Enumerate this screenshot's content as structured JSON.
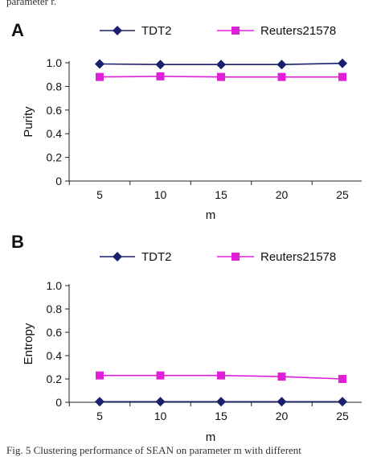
{
  "caption_top": "parameter r.",
  "caption_bottom": "Fig. 5 Clustering performance of SEAN on parameter m with different",
  "chart_data": [
    {
      "type": "line",
      "panel": "A",
      "categories": [
        "5",
        "10",
        "15",
        "20",
        "25"
      ],
      "x": [
        5,
        10,
        15,
        20,
        25
      ],
      "xlabel": "m",
      "ylabel": "Purity",
      "ylim": [
        0,
        1.0
      ],
      "yticks": [
        "0",
        "0.2",
        "0.4",
        "0.6",
        "0.8",
        "1.0"
      ],
      "legend_position": "top",
      "grid": false,
      "series": [
        {
          "name": "TDT2",
          "values": [
            0.99,
            0.985,
            0.985,
            0.985,
            0.995
          ],
          "color": "#1a1f6e",
          "marker": "diamond"
        },
        {
          "name": "Reuters21578",
          "values": [
            0.88,
            0.885,
            0.88,
            0.88,
            0.88
          ],
          "color": "#e020d8",
          "marker": "square"
        }
      ]
    },
    {
      "type": "line",
      "panel": "B",
      "categories": [
        "5",
        "10",
        "15",
        "20",
        "25"
      ],
      "x": [
        5,
        10,
        15,
        20,
        25
      ],
      "xlabel": "m",
      "ylabel": "Entropy",
      "ylim": [
        0,
        1.0
      ],
      "yticks": [
        "0",
        "0.2",
        "0.4",
        "0.6",
        "0.8",
        "1.0"
      ],
      "legend_position": "top",
      "grid": false,
      "series": [
        {
          "name": "TDT2",
          "values": [
            0.005,
            0.005,
            0.005,
            0.005,
            0.005
          ],
          "color": "#1a1f6e",
          "marker": "diamond"
        },
        {
          "name": "Reuters21578",
          "values": [
            0.23,
            0.23,
            0.23,
            0.22,
            0.2
          ],
          "color": "#e020d8",
          "marker": "square"
        }
      ]
    }
  ]
}
